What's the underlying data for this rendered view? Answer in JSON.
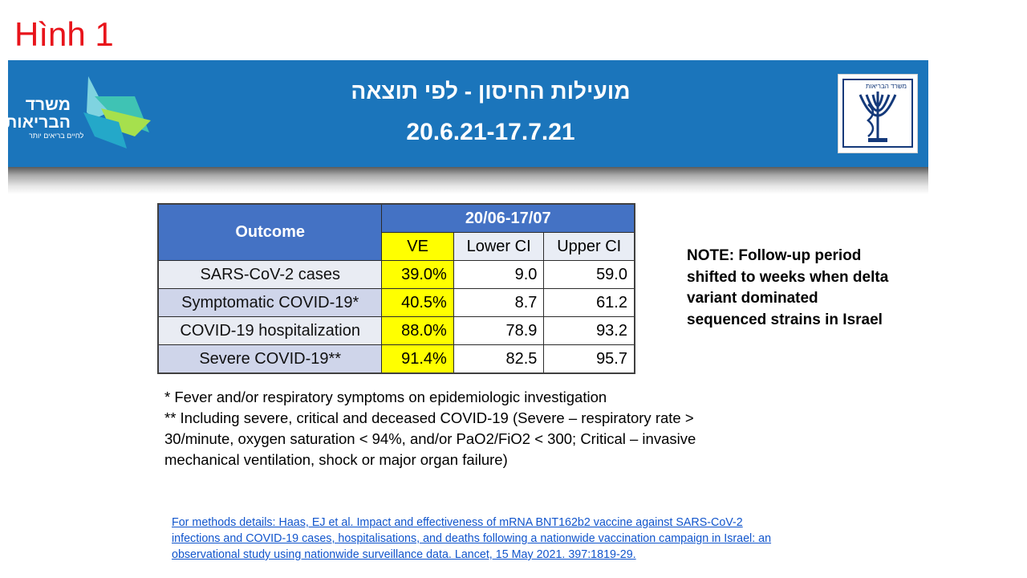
{
  "slide_label": "Hình 1",
  "banner": {
    "title": "מועילות החיסון - לפי תוצאה",
    "date_range": "20.6.21-17.7.21",
    "left_logo_text": "משרד הבריאות",
    "left_logo_tagline": "לחיים בריאים יותר",
    "right_logo_text": "משרד הבריאות",
    "color": "#1b75bb"
  },
  "table": {
    "outcome_header": "Outcome",
    "period_header": "20/06-17/07",
    "columns": [
      "VE",
      "Lower CI",
      "Upper CI"
    ],
    "rows": [
      {
        "outcome": "SARS-CoV-2 cases",
        "ve": "39.0%",
        "lower": "9.0",
        "upper": "59.0"
      },
      {
        "outcome": "Symptomatic COVID-19*",
        "ve": "40.5%",
        "lower": "8.7",
        "upper": "61.2"
      },
      {
        "outcome": "COVID-19 hospitalization",
        "ve": "88.0%",
        "lower": "78.9",
        "upper": "93.2"
      },
      {
        "outcome": "Severe COVID-19**",
        "ve": "91.4%",
        "lower": "82.5",
        "upper": "95.7"
      }
    ],
    "header_color": "#4472c4",
    "highlight_color": "#ffff00"
  },
  "note": "NOTE: Follow-up period shifted to weeks when delta variant dominated sequenced strains in Israel",
  "footnotes": [
    "* Fever and/or respiratory symptoms on epidemiologic investigation",
    "** Including severe, critical and deceased COVID-19 (Severe – respiratory rate > 30/minute, oxygen saturation < 94%, and/or PaO2/FiO2 < 300; Critical – invasive mechanical ventilation, shock or major organ failure)"
  ],
  "citation": "For methods details: Haas, EJ et al. Impact and effectiveness of mRNA BNT162b2 vaccine against SARS-CoV-2 infections and COVID-19 cases, hospitalisations, and deaths following a nationwide vaccination campaign in Israel: an observational study using nationwide surveillance data. Lancet, 15 May 2021. 397:1819-29."
}
